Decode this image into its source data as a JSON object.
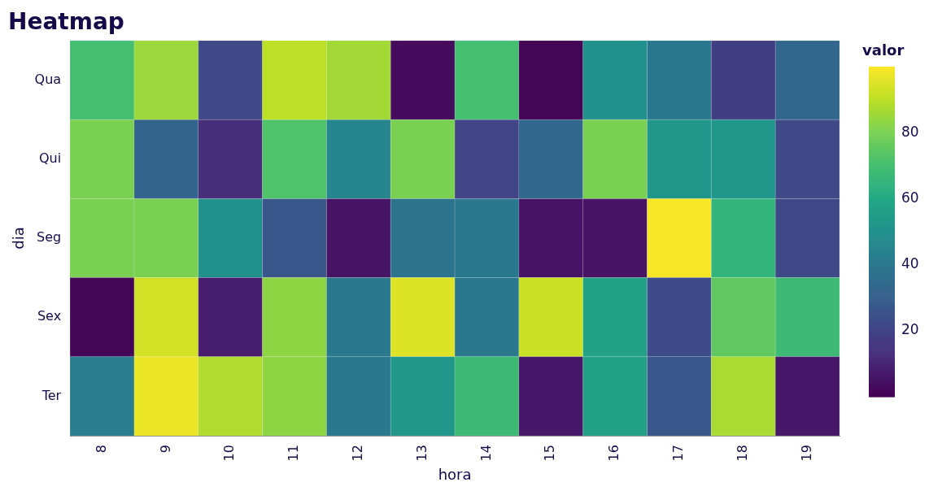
{
  "chart_data": {
    "type": "heatmap",
    "title": "Heatmap",
    "xlabel": "hora",
    "ylabel": "dia",
    "clabel": "valor",
    "categories": [
      "8",
      "9",
      "10",
      "11",
      "12",
      "13",
      "14",
      "15",
      "16",
      "17",
      "18",
      "19"
    ],
    "y_categories": [
      "Qua",
      "Qui",
      "Seg",
      "Sex",
      "Ter"
    ],
    "cells": [
      [
        70,
        85,
        22,
        90,
        86,
        3,
        70,
        1,
        50,
        40,
        18,
        33
      ],
      [
        80,
        32,
        13,
        72,
        45,
        80,
        20,
        33,
        80,
        52,
        52,
        22
      ],
      [
        80,
        80,
        50,
        27,
        5,
        38,
        40,
        5,
        5,
        99,
        65,
        22
      ],
      [
        1,
        93,
        8,
        83,
        40,
        95,
        40,
        92,
        57,
        23,
        75,
        68
      ],
      [
        42,
        97,
        88,
        83,
        40,
        52,
        68,
        6,
        57,
        27,
        87,
        6
      ]
    ],
    "clim": [
      0,
      100
    ],
    "cticks": [
      20,
      40,
      60,
      80
    ],
    "grid": false
  }
}
